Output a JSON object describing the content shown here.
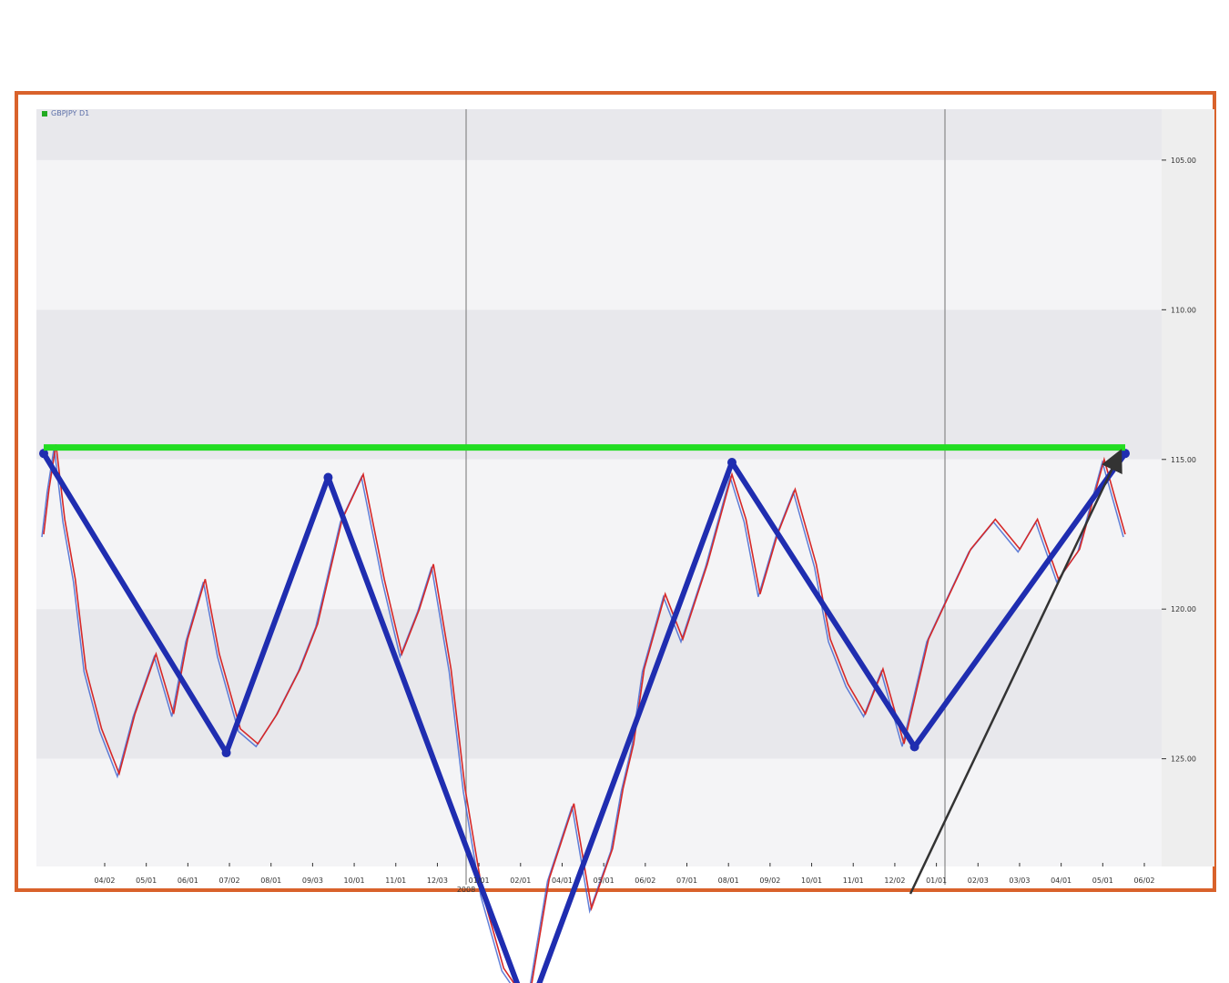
{
  "chart_data": {
    "type": "line",
    "legend": "GBPJPY D1",
    "legend_placement": "top-left",
    "y_axis": {
      "side": "right",
      "ticks": [
        105,
        110,
        115,
        120,
        125
      ],
      "tick_labels": [
        "105.00",
        "110.00",
        "115.00",
        "120.00",
        "125.00"
      ],
      "ylim": [
        103.3,
        128.6
      ],
      "inverted": true
    },
    "x_axis": {
      "tick_labels": [
        "04/02",
        "05/01",
        "06/01",
        "07/02",
        "08/01",
        "09/03",
        "10/01",
        "11/01",
        "12/03",
        "01/01",
        "02/01",
        "04/01",
        "05/01",
        "06/02",
        "07/01",
        "08/01",
        "09/02",
        "10/01",
        "11/01",
        "12/02",
        "01/01",
        "02/03",
        "03/03",
        "04/01",
        "05/01",
        "06/02"
      ],
      "year_marks": [
        "2008"
      ]
    },
    "grid": true,
    "series": [
      {
        "name": "",
        "color": "#d62828",
        "x": [
          0,
          3,
          7,
          12,
          18,
          24,
          33,
          43,
          52,
          64,
          74,
          82,
          92,
          100,
          112,
          122,
          133,
          146,
          156,
          170,
          182,
          194,
          204,
          214,
          222,
          232,
          240,
          250,
          262,
          276,
          288,
          302,
          312,
          324,
          330,
          336,
          342,
          354,
          364,
          378,
          392,
          400,
          408,
          418,
          428,
          440,
          448,
          458,
          468,
          478,
          490,
          504,
          516,
          528,
          542,
          556,
          566,
          578,
          590,
          604,
          616
        ],
        "y": [
          117.5,
          116.0,
          114.5,
          117.0,
          119.0,
          122.0,
          124.0,
          125.5,
          123.5,
          121.5,
          123.5,
          121.0,
          119.0,
          121.5,
          124.0,
          124.5,
          123.5,
          122.0,
          120.5,
          117.0,
          115.5,
          119.0,
          121.5,
          120.0,
          118.5,
          122.0,
          126.0,
          129.5,
          132.0,
          133.2,
          129.0,
          126.5,
          130.0,
          128.0,
          126.0,
          124.5,
          122.0,
          119.5,
          121.0,
          118.5,
          115.5,
          117.0,
          119.5,
          117.5,
          116.0,
          118.5,
          121.0,
          122.5,
          123.5,
          122.0,
          124.5,
          121.0,
          119.5,
          118.0,
          117.0,
          118.0,
          117.0,
          119.0,
          118.0,
          115.0,
          117.5
        ]
      }
    ],
    "annotations": [
      {
        "type": "zigzag",
        "color": "#1f2db0",
        "x": [
          0,
          104,
          162,
          276,
          392,
          496,
          616
        ],
        "y": [
          114.8,
          124.8,
          115.6,
          133.5,
          115.1,
          124.6,
          114.8
        ]
      },
      {
        "type": "support-line",
        "color": "#22dd22",
        "y": 114.6
      },
      {
        "type": "arrow",
        "color": "#333333",
        "to_x": 616,
        "to_y": 114.6
      }
    ]
  }
}
